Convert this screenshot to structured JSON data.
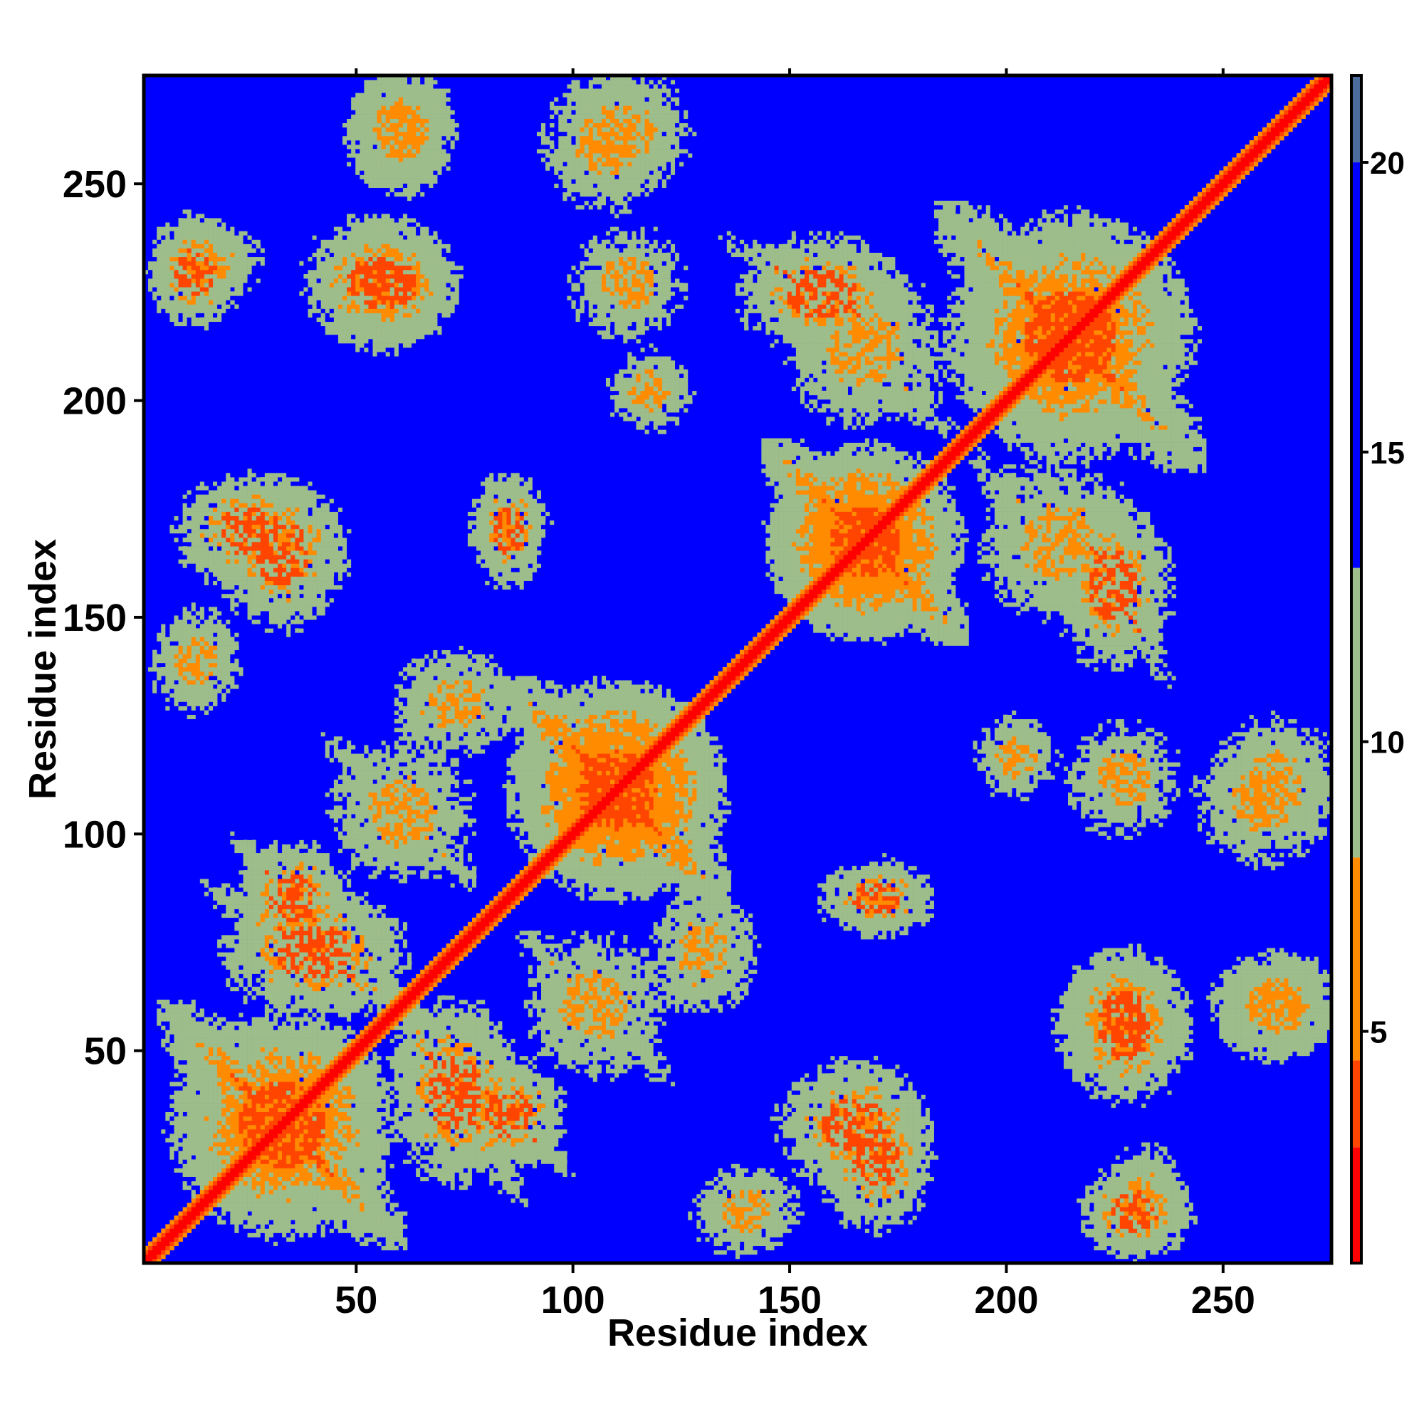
{
  "chart_data": {
    "type": "heatmap",
    "title": "",
    "xlabel": "Residue index",
    "ylabel": "Residue index",
    "n_residues": 275,
    "xlim": [
      1,
      275
    ],
    "ylim": [
      1,
      275
    ],
    "xticks": [
      50,
      100,
      150,
      200,
      250
    ],
    "yticks": [
      50,
      100,
      150,
      200,
      250
    ],
    "colorbar": {
      "range": [
        1,
        21.5
      ],
      "ticks": [
        5,
        10,
        15,
        20
      ],
      "colors": {
        "contact": "#ff0000",
        "near": "#ff8c00",
        "medium": "#9dbd8a",
        "far": "#0000ff",
        "top": "#4a6d9e"
      }
    },
    "symmetric": true,
    "diagonal_value": 1,
    "background_value": 21,
    "contact_regions": [
      {
        "x": [
          10,
          55
        ],
        "y": [
          10,
          55
        ],
        "v": 6,
        "orient": "anti"
      },
      {
        "x": [
          25,
          45
        ],
        "y": [
          75,
          95
        ],
        "v": 7,
        "orient": "anti"
      },
      {
        "x": [
          45,
          75
        ],
        "y": [
          90,
          120
        ],
        "v": 8,
        "orient": "anti"
      },
      {
        "x": [
          60,
          85
        ],
        "y": [
          120,
          140
        ],
        "v": 8,
        "orient": "blob"
      },
      {
        "x": [
          90,
          130
        ],
        "y": [
          90,
          130
        ],
        "v": 5,
        "orient": "anti"
      },
      {
        "x": [
          20,
          60
        ],
        "y": [
          60,
          85
        ],
        "v": 7,
        "orient": "anti"
      },
      {
        "x": [
          150,
          185
        ],
        "y": [
          150,
          185
        ],
        "v": 5,
        "orient": "anti"
      },
      {
        "x": [
          190,
          240
        ],
        "y": [
          190,
          240
        ],
        "v": 6,
        "orient": "anti"
      },
      {
        "x": [
          140,
          175
        ],
        "y": [
          215,
          235
        ],
        "v": 7,
        "orient": "anti"
      },
      {
        "x": [
          195,
          230
        ],
        "y": [
          150,
          185
        ],
        "v": 8,
        "orient": "anti"
      },
      {
        "x": [
          10,
          40
        ],
        "y": [
          160,
          180
        ],
        "v": 7,
        "orient": "blob"
      },
      {
        "x": [
          45,
          70
        ],
        "y": [
          215,
          240
        ],
        "v": 7,
        "orient": "blob"
      },
      {
        "x": [
          50,
          70
        ],
        "y": [
          250,
          275
        ],
        "v": 8,
        "orient": "blob"
      },
      {
        "x": [
          95,
          120
        ],
        "y": [
          245,
          275
        ],
        "v": 8,
        "orient": "blob"
      },
      {
        "x": [
          100,
          125
        ],
        "y": [
          215,
          240
        ],
        "v": 9,
        "orient": "blob"
      },
      {
        "x": [
          5,
          20
        ],
        "y": [
          220,
          240
        ],
        "v": 7,
        "orient": "blob"
      },
      {
        "x": [
          5,
          20
        ],
        "y": [
          130,
          150
        ],
        "v": 8,
        "orient": "blob"
      },
      {
        "x": [
          80,
          90
        ],
        "y": [
          160,
          180
        ],
        "v": 7,
        "orient": "blob"
      },
      {
        "x": [
          195,
          210
        ],
        "y": [
          110,
          125
        ],
        "v": 9,
        "orient": "blob"
      },
      {
        "x": [
          215,
          240
        ],
        "y": [
          40,
          70
        ],
        "v": 7,
        "orient": "blob"
      },
      {
        "x": [
          225,
          240
        ],
        "y": [
          5,
          25
        ],
        "v": 8,
        "orient": "blob"
      },
      {
        "x": [
          150,
          180
        ],
        "y": [
          20,
          45
        ],
        "v": 7,
        "orient": "blob"
      },
      {
        "x": [
          250,
          275
        ],
        "y": [
          50,
          70
        ],
        "v": 8,
        "orient": "blob"
      },
      {
        "x": [
          250,
          275
        ],
        "y": [
          100,
          125
        ],
        "v": 8,
        "orient": "blob"
      }
    ]
  }
}
